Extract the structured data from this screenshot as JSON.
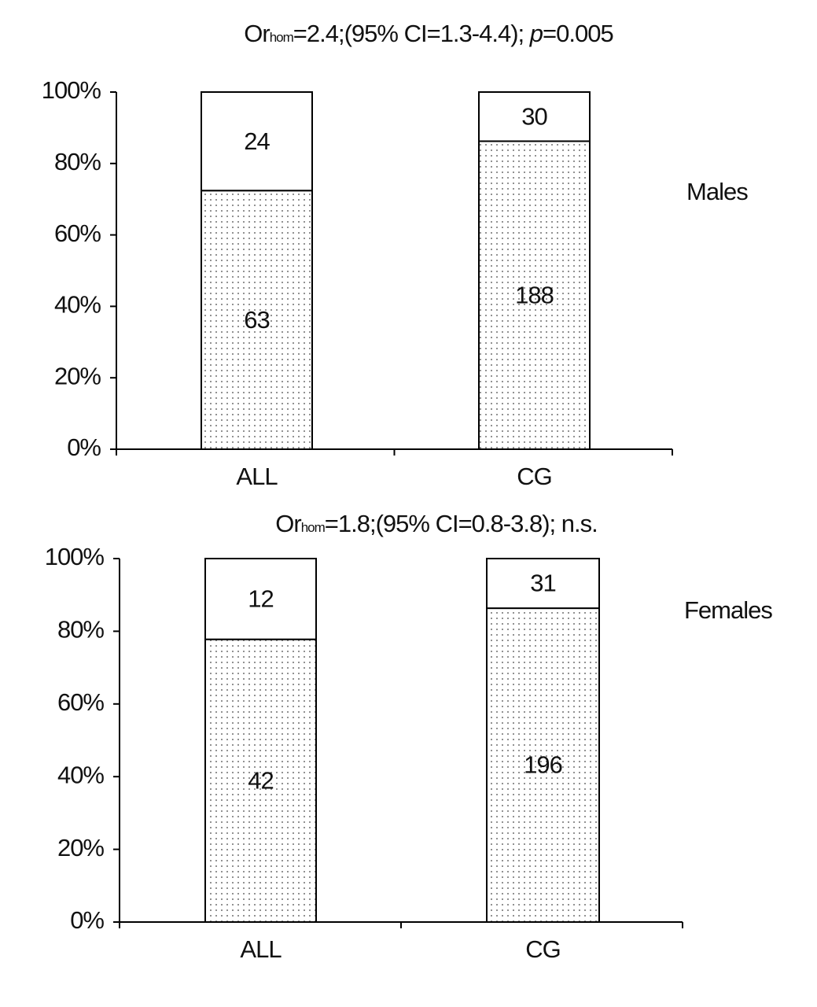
{
  "chart_data": [
    {
      "type": "stacked_percent_bar",
      "title": {
        "prefix": "Or",
        "subscript": "hom",
        "text": "=2.4;(95% CI=1.3-4.4); ",
        "italic": "p",
        "suffix": "=0.005"
      },
      "panel_label": "Males",
      "categories": [
        "ALL",
        "CG"
      ],
      "series": [
        {
          "values": [
            63,
            188
          ],
          "pattern": "dots"
        },
        {
          "values": [
            24,
            30
          ],
          "color": "#ffffff"
        }
      ],
      "ylim": [
        0,
        100
      ],
      "yticks": [
        {
          "value": 0,
          "label": "0%"
        },
        {
          "value": 20,
          "label": "20%"
        },
        {
          "value": 40,
          "label": "40%"
        },
        {
          "value": 60,
          "label": "60%"
        },
        {
          "value": 80,
          "label": "80%"
        },
        {
          "value": 100,
          "label": "100%"
        }
      ]
    },
    {
      "type": "stacked_percent_bar",
      "title": {
        "prefix": "Or",
        "subscript": "hom",
        "text": "=1.8;(95% CI=0.8-3.8); n.s."
      },
      "panel_label": "Females",
      "categories": [
        "ALL",
        "CG"
      ],
      "series": [
        {
          "values": [
            42,
            196
          ],
          "pattern": "dots"
        },
        {
          "values": [
            12,
            31
          ],
          "color": "#ffffff"
        }
      ],
      "ylim": [
        0,
        100
      ],
      "yticks": [
        {
          "value": 0,
          "label": "0%"
        },
        {
          "value": 20,
          "label": "20%"
        },
        {
          "value": 40,
          "label": "40%"
        },
        {
          "value": 60,
          "label": "60%"
        },
        {
          "value": 80,
          "label": "80%"
        },
        {
          "value": 100,
          "label": "100%"
        }
      ]
    }
  ]
}
